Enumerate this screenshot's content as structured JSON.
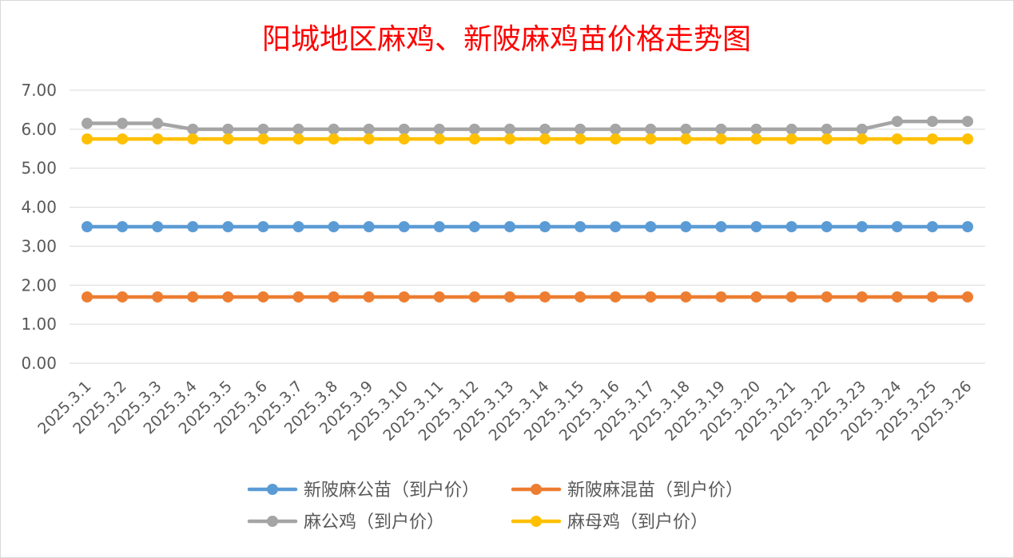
{
  "chart_data": {
    "type": "line",
    "title": "阳城地区麻鸡、新陂麻鸡苗价格走势图",
    "xlabel": "",
    "ylabel": "",
    "ylim": [
      0,
      7
    ],
    "yticks": [
      "0.00",
      "1.00",
      "2.00",
      "3.00",
      "4.00",
      "5.00",
      "6.00",
      "7.00"
    ],
    "categories": [
      "2025.3.1",
      "2025.3.2",
      "2025.3.3",
      "2025.3.4",
      "2025.3.5",
      "2025.3.6",
      "2025.3.7",
      "2025.3.8",
      "2025.3.9",
      "2025.3.10",
      "2025.3.11",
      "2025.3.12",
      "2025.3.13",
      "2025.3.14",
      "2025.3.15",
      "2025.3.16",
      "2025.3.17",
      "2025.3.18",
      "2025.3.19",
      "2025.3.20",
      "2025.3.21",
      "2025.3.22",
      "2025.3.23",
      "2025.3.24",
      "2025.3.25",
      "2025.3.26"
    ],
    "grid": true,
    "legend_position": "bottom",
    "series": [
      {
        "name": "新陂麻公苗（到户价）",
        "color": "#5b9bd5",
        "values": [
          3.5,
          3.5,
          3.5,
          3.5,
          3.5,
          3.5,
          3.5,
          3.5,
          3.5,
          3.5,
          3.5,
          3.5,
          3.5,
          3.5,
          3.5,
          3.5,
          3.5,
          3.5,
          3.5,
          3.5,
          3.5,
          3.5,
          3.5,
          3.5,
          3.5,
          3.5
        ]
      },
      {
        "name": "新陂麻混苗（到户价）",
        "color": "#ed7d31",
        "values": [
          1.7,
          1.7,
          1.7,
          1.7,
          1.7,
          1.7,
          1.7,
          1.7,
          1.7,
          1.7,
          1.7,
          1.7,
          1.7,
          1.7,
          1.7,
          1.7,
          1.7,
          1.7,
          1.7,
          1.7,
          1.7,
          1.7,
          1.7,
          1.7,
          1.7,
          1.7
        ]
      },
      {
        "name": "麻公鸡（到户价）",
        "color": "#a5a5a5",
        "values": [
          6.15,
          6.15,
          6.15,
          6.0,
          6.0,
          6.0,
          6.0,
          6.0,
          6.0,
          6.0,
          6.0,
          6.0,
          6.0,
          6.0,
          6.0,
          6.0,
          6.0,
          6.0,
          6.0,
          6.0,
          6.0,
          6.0,
          6.0,
          6.2,
          6.2,
          6.2
        ]
      },
      {
        "name": "麻母鸡（到户价）",
        "color": "#ffc000",
        "values": [
          5.75,
          5.75,
          5.75,
          5.75,
          5.75,
          5.75,
          5.75,
          5.75,
          5.75,
          5.75,
          5.75,
          5.75,
          5.75,
          5.75,
          5.75,
          5.75,
          5.75,
          5.75,
          5.75,
          5.75,
          5.75,
          5.75,
          5.75,
          5.75,
          5.75,
          5.75
        ]
      }
    ]
  }
}
